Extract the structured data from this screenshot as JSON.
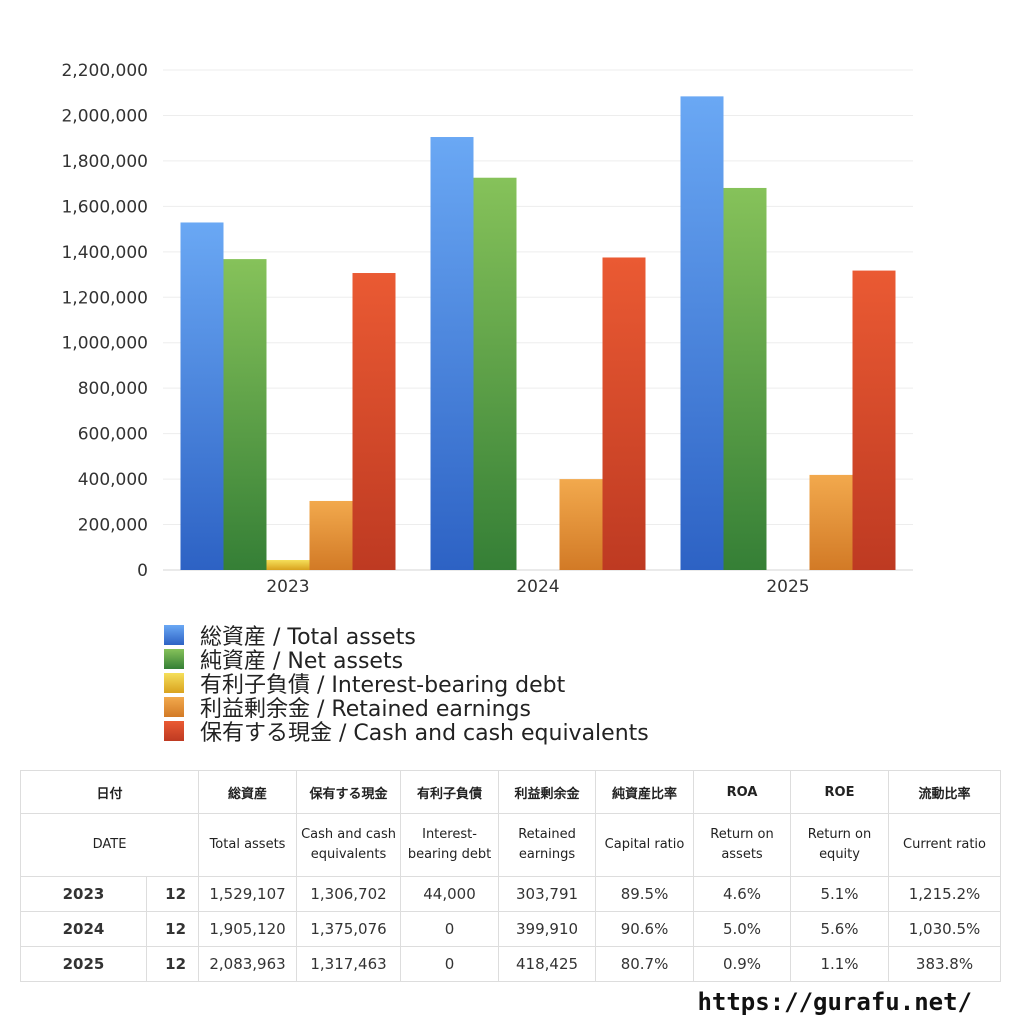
{
  "chart_data": {
    "type": "bar",
    "categories": [
      "2023",
      "2024",
      "2025"
    ],
    "series": [
      {
        "name": "総資産 / Total assets",
        "values": [
          1529107,
          1905120,
          2083963
        ],
        "color": "#3b7fdc"
      },
      {
        "name": "純資産 / Net assets",
        "values": [
          1368000,
          1726000,
          1681000
        ],
        "color": "#4ea444"
      },
      {
        "name": "有利子負債 / Interest-bearing debt",
        "values": [
          44000,
          0,
          0
        ],
        "color": "#e8c533"
      },
      {
        "name": "利益剰余金 / Retained earnings",
        "values": [
          303791,
          399910,
          418425
        ],
        "color": "#e58f35"
      },
      {
        "name": "保有する現金 /  Cash and cash equivalents",
        "values": [
          1306702,
          1375076,
          1317463
        ],
        "color": "#d8482a"
      }
    ],
    "ylim": [
      0,
      2200000
    ],
    "yticks": [
      "0",
      "200,000",
      "400,000",
      "600,000",
      "800,000",
      "1,000,000",
      "1,200,000",
      "1,400,000",
      "1,600,000",
      "1,800,000",
      "2,000,000",
      "2,200,000"
    ],
    "grid": true,
    "legend": "bottom"
  },
  "table": {
    "headers": [
      "日付",
      "総資産",
      "保有する現金",
      "有利子負債",
      "利益剰余金",
      "純資産比率",
      "ROA",
      "ROE",
      "流動比率"
    ],
    "subheaders": [
      "DATE",
      "Total assets",
      "Cash and cash equivalents",
      "Interest-bearing debt",
      "Retained earnings",
      "Capital ratio",
      "Return on assets",
      "Return on equity",
      "Current ratio"
    ],
    "rows": [
      {
        "year": "2023",
        "month": "12",
        "total_assets": "1,529,107",
        "cash": "1,306,702",
        "debt": "44,000",
        "retained": "303,791",
        "capital_ratio": "89.5%",
        "roa": "4.6%",
        "roe": "5.1%",
        "current_ratio": "1,215.2%"
      },
      {
        "year": "2024",
        "month": "12",
        "total_assets": "1,905,120",
        "cash": "1,375,076",
        "debt": "0",
        "retained": "399,910",
        "capital_ratio": "90.6%",
        "roa": "5.0%",
        "roe": "5.6%",
        "current_ratio": "1,030.5%"
      },
      {
        "year": "2025",
        "month": "12",
        "total_assets": "2,083,963",
        "cash": "1,317,463",
        "debt": "0",
        "retained": "418,425",
        "capital_ratio": "80.7%",
        "roa": "0.9%",
        "roe": "1.1%",
        "current_ratio": "383.8%"
      }
    ]
  },
  "footer": {
    "url": "https://gurafu.net/"
  }
}
